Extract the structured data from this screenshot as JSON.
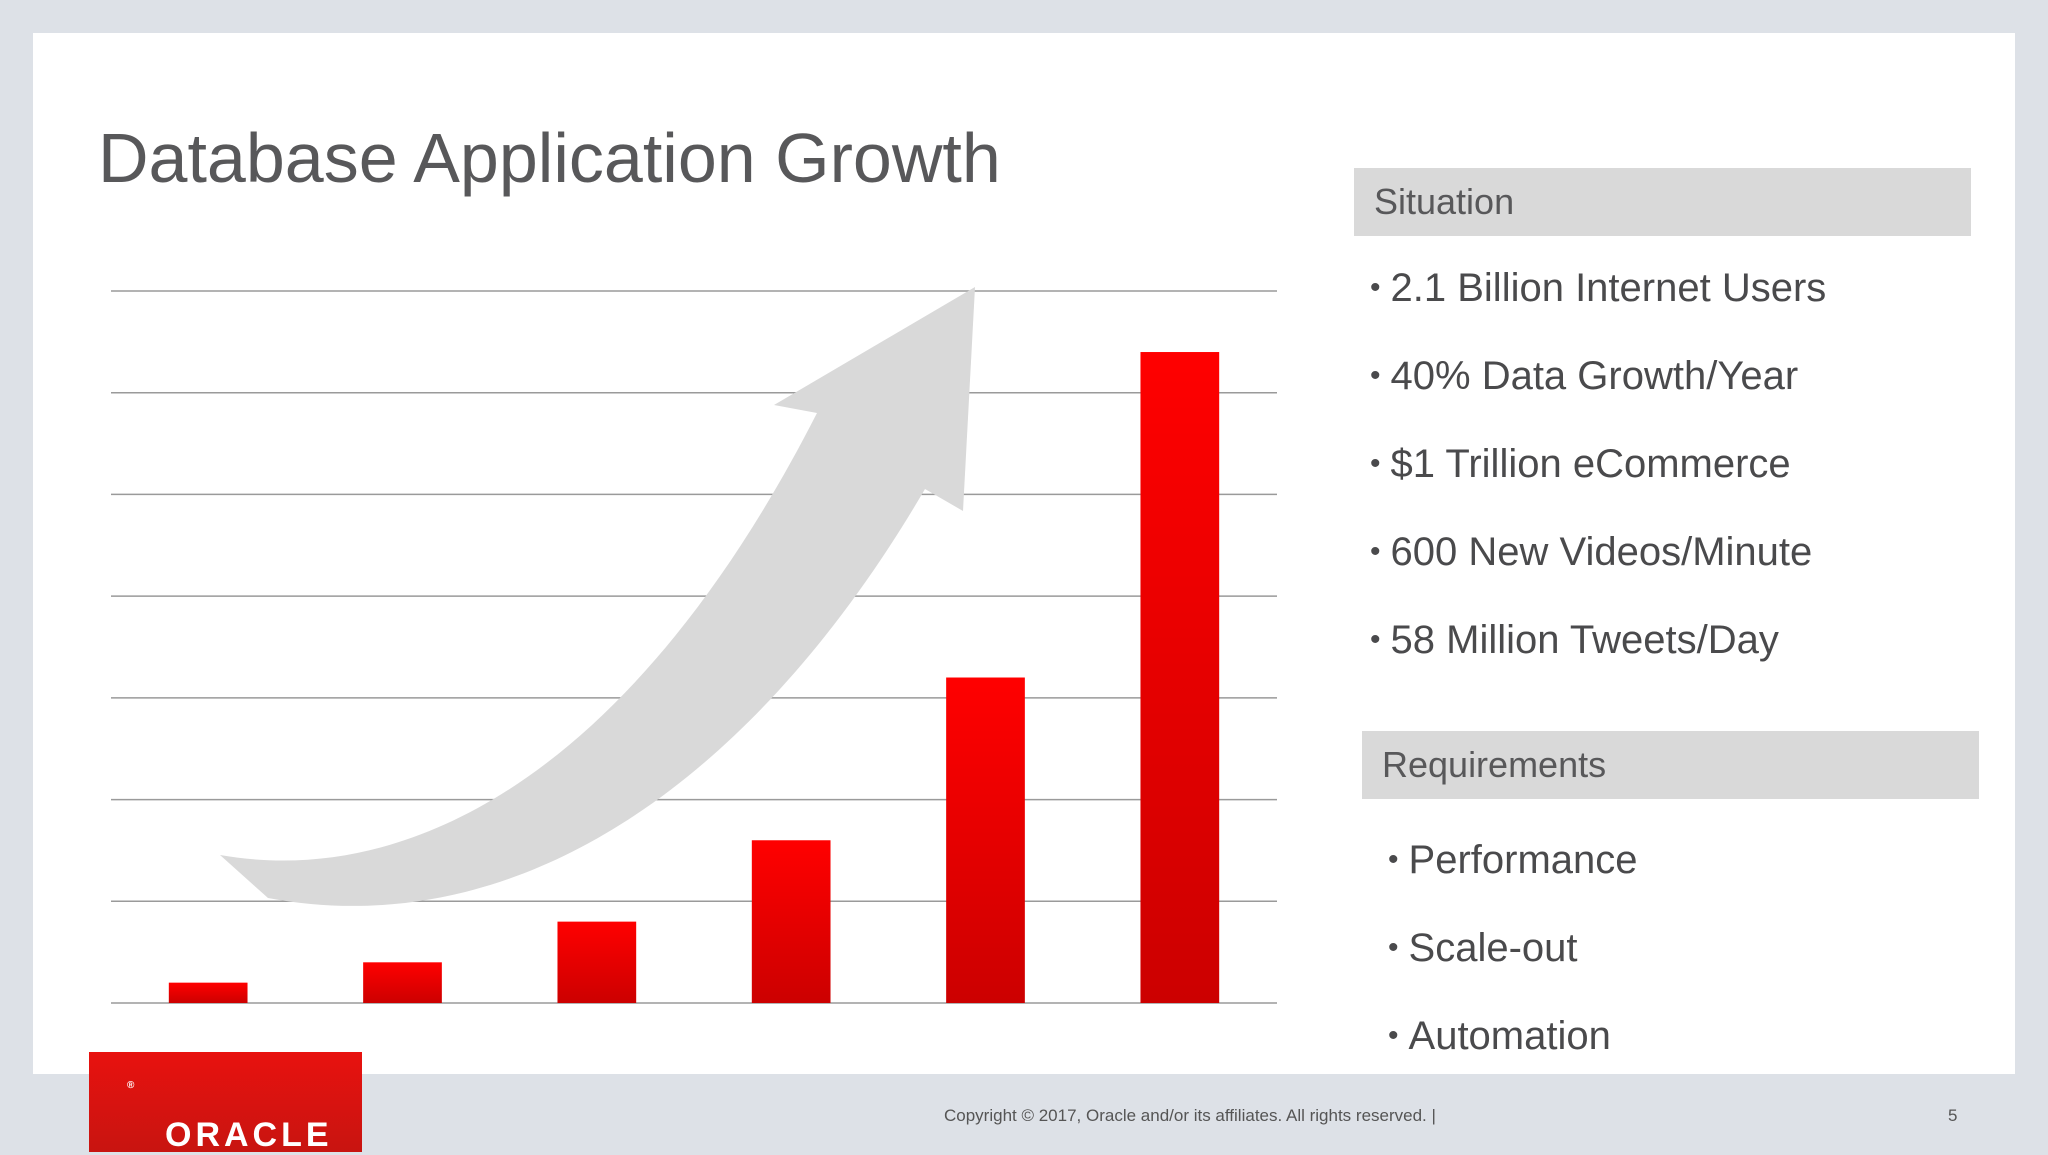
{
  "slide": {
    "title": "Database Application Growth",
    "footer_text": "Copyright © 2017, Oracle and/or its affiliates. All rights reserved.  |",
    "page_number": "5",
    "logo_text": "ORACLE",
    "logo_mark": "®"
  },
  "colors": {
    "bar_top": "#ff0000",
    "bar_bottom": "#cc0000",
    "gridline": "#9a9a9a",
    "arrow": "#d9d9d9",
    "text": "#58585a"
  },
  "situation": {
    "header": "Situation",
    "items": [
      "2.1 Billion Internet Users",
      "40% Data Growth/Year",
      "$1 Trillion eCommerce",
      "600 New Videos/Minute",
      "58 Million Tweets/Day"
    ]
  },
  "requirements": {
    "header": "Requirements",
    "items": [
      "Performance",
      "Scale-out",
      "Automation"
    ]
  },
  "chart_data": {
    "type": "bar",
    "categories": [
      "",
      "",
      "",
      "",
      "",
      ""
    ],
    "values": [
      0.2,
      0.4,
      0.8,
      1.6,
      3.2,
      6.4
    ],
    "ylim": [
      0,
      7
    ],
    "grid": true,
    "gridline_count": 8,
    "decoration": "upward curved arrow"
  }
}
